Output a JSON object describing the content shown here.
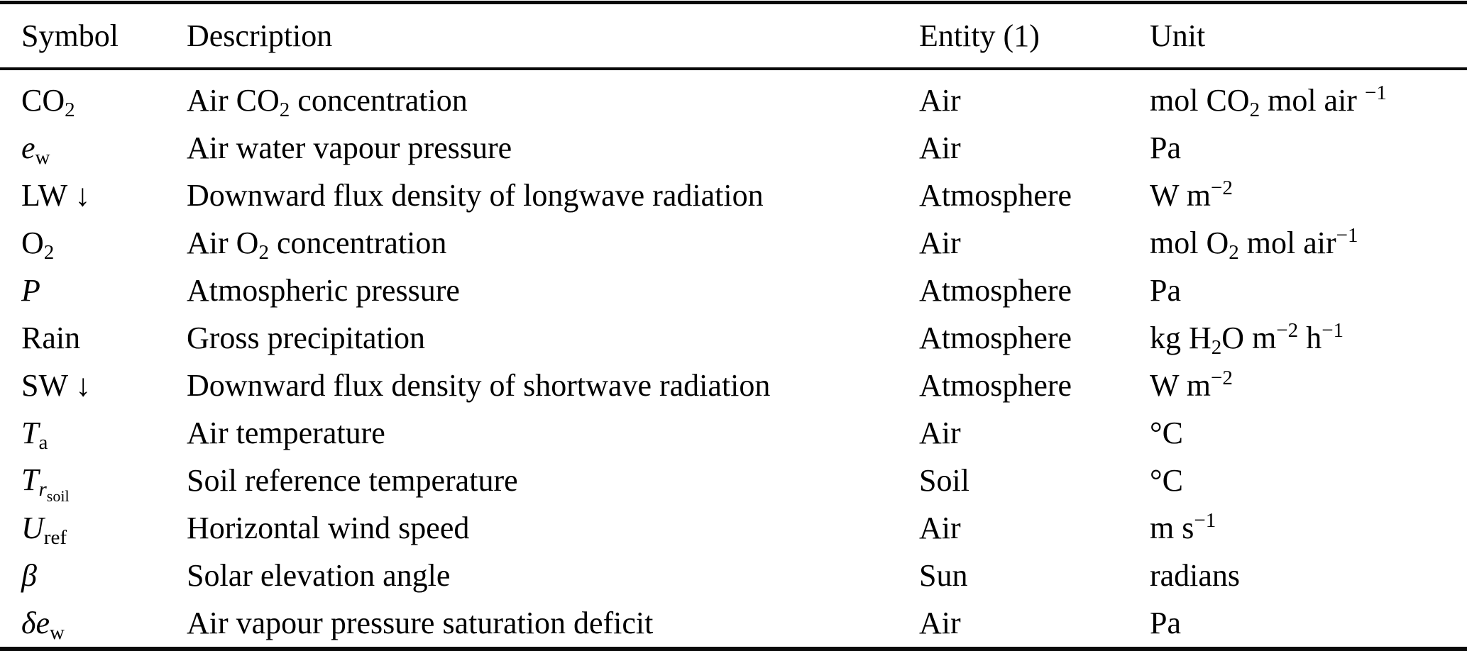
{
  "table": {
    "columns": [
      "Symbol",
      "Description",
      "Entity (1)",
      "Unit"
    ],
    "rows": [
      {
        "symbol": [
          {
            "t": "CO"
          },
          {
            "t": "2",
            "m": "sub"
          }
        ],
        "description": [
          {
            "t": "Air CO"
          },
          {
            "t": "2",
            "m": "sub"
          },
          {
            "t": " concentration"
          }
        ],
        "entity": "Air",
        "unit": [
          {
            "t": "mol CO"
          },
          {
            "t": "2",
            "m": "sub"
          },
          {
            "t": " mol air "
          },
          {
            "t": "−1",
            "m": "sup"
          }
        ]
      },
      {
        "symbol": [
          {
            "t": "e",
            "m": "it"
          },
          {
            "t": "w",
            "m": "sub"
          }
        ],
        "description": "Air water vapour pressure",
        "entity": "Air",
        "unit": "Pa"
      },
      {
        "symbol": "LW ↓",
        "description": "Downward flux density of longwave radiation",
        "entity": "Atmosphere",
        "unit": [
          {
            "t": "W m"
          },
          {
            "t": "−2",
            "m": "sup"
          }
        ]
      },
      {
        "symbol": [
          {
            "t": "O"
          },
          {
            "t": "2",
            "m": "sub"
          }
        ],
        "description": [
          {
            "t": "Air O"
          },
          {
            "t": "2",
            "m": "sub"
          },
          {
            "t": " concentration"
          }
        ],
        "entity": "Air",
        "unit": [
          {
            "t": "mol O"
          },
          {
            "t": "2",
            "m": "sub"
          },
          {
            "t": " mol air"
          },
          {
            "t": "−1",
            "m": "sup"
          }
        ]
      },
      {
        "symbol": [
          {
            "t": "P",
            "m": "it"
          }
        ],
        "description": "Atmospheric pressure",
        "entity": "Atmosphere",
        "unit": "Pa"
      },
      {
        "symbol": "Rain",
        "description": "Gross precipitation",
        "entity": "Atmosphere",
        "unit": [
          {
            "t": "kg H"
          },
          {
            "t": "2",
            "m": "sub"
          },
          {
            "t": "O m"
          },
          {
            "t": "−2",
            "m": "sup"
          },
          {
            "t": " h"
          },
          {
            "t": "−1",
            "m": "sup"
          }
        ]
      },
      {
        "symbol": "SW ↓",
        "description": "Downward flux density of shortwave radiation",
        "entity": "Atmosphere",
        "unit": [
          {
            "t": "W m"
          },
          {
            "t": "−2",
            "m": "sup"
          }
        ]
      },
      {
        "symbol": [
          {
            "t": "T",
            "m": "it"
          },
          {
            "t": "a",
            "m": "sub"
          }
        ],
        "description": "Air temperature",
        "entity": "Air",
        "unit": "°C"
      },
      {
        "symbol": [
          {
            "t": "T",
            "m": "it"
          },
          {
            "t": "r",
            "m": "itsub"
          },
          {
            "t": "soil",
            "m": "subsub"
          }
        ],
        "description": "Soil reference temperature",
        "entity": "Soil",
        "unit": "°C"
      },
      {
        "symbol": [
          {
            "t": "U",
            "m": "it"
          },
          {
            "t": "ref",
            "m": "sub"
          }
        ],
        "description": "Horizontal wind speed",
        "entity": "Air",
        "unit": [
          {
            "t": "m s"
          },
          {
            "t": "−1",
            "m": "sup"
          }
        ]
      },
      {
        "symbol": [
          {
            "t": "β",
            "m": "it"
          }
        ],
        "description": "Solar elevation angle",
        "entity": "Sun",
        "unit": "radians"
      },
      {
        "symbol": [
          {
            "t": "δ",
            "m": "it"
          },
          {
            "t": "e",
            "m": "it"
          },
          {
            "t": "w",
            "m": "sub"
          }
        ],
        "description": "Air vapour pressure saturation deficit",
        "entity": "Air",
        "unit": "Pa"
      }
    ]
  }
}
